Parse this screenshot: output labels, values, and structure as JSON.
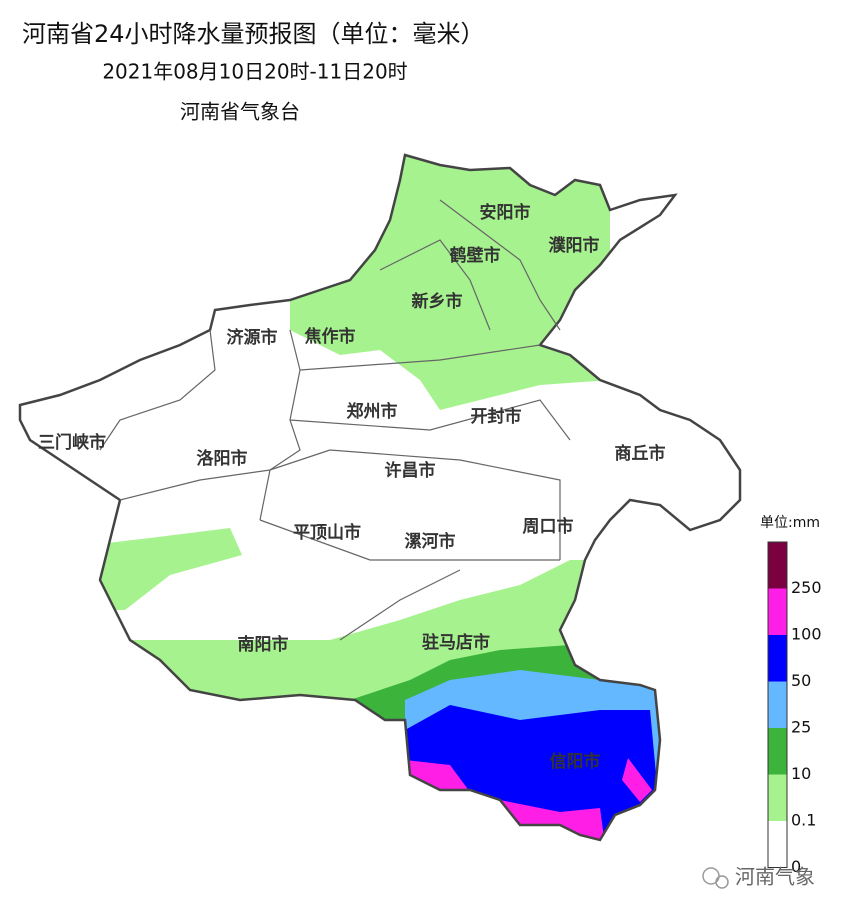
{
  "header": {
    "title": "河南省24小时降水量预报图（单位：毫米）",
    "subtitle": "2021年08月10日20时-11日20时",
    "issuer": "河南省气象台"
  },
  "cities": [
    "安阳市",
    "鹤壁市",
    "濮阳市",
    "新乡市",
    "济源市",
    "焦作市",
    "郑州市",
    "开封市",
    "三门峡市",
    "洛阳市",
    "商丘市",
    "许昌市",
    "平顶山市",
    "漯河市",
    "周口市",
    "南阳市",
    "驻马店市",
    "信阳市"
  ],
  "legend": {
    "title": "单位:mm",
    "ticks": [
      250,
      100,
      50,
      25,
      10,
      0.1,
      0
    ],
    "colors": [
      "#7a0040",
      "#ff1ee6",
      "#0000ff",
      "#63b8ff",
      "#3cb43c",
      "#a6f28e",
      "#ffffff"
    ]
  },
  "watermark": "河南气象"
}
